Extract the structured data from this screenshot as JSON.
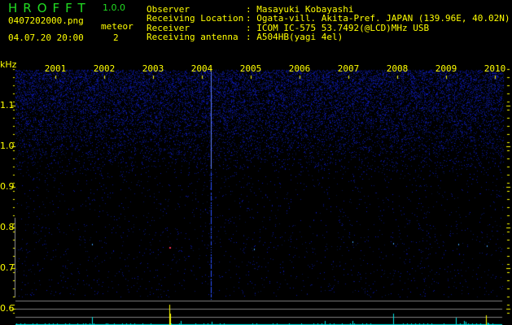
{
  "app": {
    "title": "HROFFT",
    "version": "1.0.0"
  },
  "file": {
    "name": "0407202000.png",
    "datetime": "04.07.20 20:00"
  },
  "meteor": {
    "label": "meteor",
    "count": "2"
  },
  "info": [
    {
      "label": "Observer",
      "value": ": Masayuki Kobayashi"
    },
    {
      "label": "Receiving Location",
      "value": ": Ogata-vill. Akita-Pref. JAPAN (139.96E, 40.02N)"
    },
    {
      "label": "Receiver",
      "value": ": ICOM IC-575 53.7492(@LCD)MHz USB"
    },
    {
      "label": "Receiving antenna",
      "value": ": A504HB(yagi 4el)"
    }
  ],
  "axis": {
    "y_unit": "kHz",
    "y_ticks": [
      "1.1",
      "1.0",
      "0.9",
      "0.8",
      "0.7",
      "0.6"
    ],
    "x_ticks": [
      "2001",
      "2002",
      "2003",
      "2004",
      "2005",
      "2006",
      "2007",
      "2008",
      "2009",
      "2010"
    ]
  },
  "colors": {
    "text": "#ffff00",
    "title": "#22dd22",
    "noise": "#1a2aa0",
    "count_bar": "#00e5e5",
    "meteor_bar": "#ffff00",
    "grid": "#808080"
  }
}
